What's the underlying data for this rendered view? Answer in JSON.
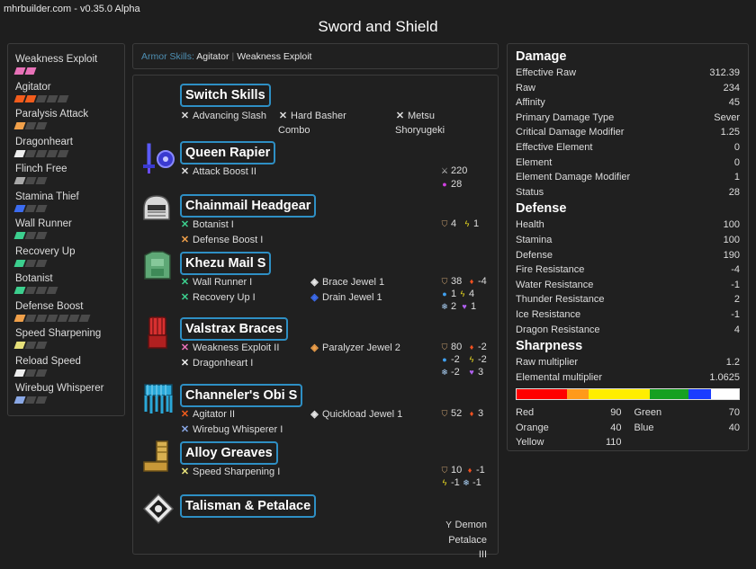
{
  "app": {
    "version": "mhrbuilder.com - v0.35.0 Alpha",
    "title": "Sword and Shield"
  },
  "skills": [
    {
      "name": "Weakness Exploit",
      "level": 2,
      "max": 2,
      "color": "#e872b8"
    },
    {
      "name": "Agitator",
      "level": 2,
      "max": 5,
      "color": "#f25c1c"
    },
    {
      "name": "Paralysis Attack",
      "level": 1,
      "max": 3,
      "color": "#f0a04a"
    },
    {
      "name": "Dragonheart",
      "level": 1,
      "max": 5,
      "color": "#eeeeee"
    },
    {
      "name": "Flinch Free",
      "level": 1,
      "max": 3,
      "color": "#a8a8a8"
    },
    {
      "name": "Stamina Thief",
      "level": 1,
      "max": 3,
      "color": "#3c6cf0"
    },
    {
      "name": "Wall Runner",
      "level": 1,
      "max": 3,
      "color": "#3ccf8e"
    },
    {
      "name": "Recovery Up",
      "level": 1,
      "max": 3,
      "color": "#3ccf8e"
    },
    {
      "name": "Botanist",
      "level": 1,
      "max": 4,
      "color": "#3ccf8e"
    },
    {
      "name": "Defense Boost",
      "level": 1,
      "max": 7,
      "color": "#f0a04a"
    },
    {
      "name": "Speed Sharpening",
      "level": 1,
      "max": 3,
      "color": "#e6e07a"
    },
    {
      "name": "Reload Speed",
      "level": 1,
      "max": 3,
      "color": "#eeeeee"
    },
    {
      "name": "Wirebug Whisperer",
      "level": 1,
      "max": 3,
      "color": "#8aa8e6"
    }
  ],
  "armor_bar": {
    "label": "Armor Skills:",
    "items": [
      "Agitator",
      "Weakness Exploit"
    ]
  },
  "switch_skills": {
    "title": "Switch Skills",
    "items": [
      "Advancing Slash",
      "Hard Basher Combo",
      "Metsu Shoryugeki"
    ]
  },
  "equipment": {
    "weapon": {
      "title": "Queen Rapier",
      "icon": "sword-shield-icon",
      "skills": [
        {
          "name": "Attack Boost II",
          "color": "#ddd"
        }
      ],
      "stats": [
        {
          "icon": "attack-icon",
          "value": "220"
        },
        {
          "icon": "paralysis-icon",
          "value": "28"
        }
      ]
    },
    "head": {
      "title": "Chainmail Headgear",
      "icon": "helmet-icon",
      "skills": [
        {
          "name": "Botanist I",
          "color": "#3ccf8e"
        },
        {
          "name": "Defense Boost I",
          "color": "#f0a04a"
        }
      ],
      "stats": [
        {
          "icon": "defense-icon",
          "value": "4"
        },
        {
          "icon": "thunder-icon",
          "value": "1"
        }
      ]
    },
    "chest": {
      "title": "Khezu Mail S",
      "icon": "chest-icon",
      "skills": [
        {
          "name": "Wall Runner I",
          "color": "#3ccf8e"
        },
        {
          "name": "Recovery Up I",
          "color": "#3ccf8e"
        }
      ],
      "jewels": [
        "Brace Jewel 1",
        "Drain Jewel 1"
      ],
      "stats": [
        {
          "icon": "defense-icon",
          "value": "38"
        },
        {
          "icon": "fire-icon",
          "value": "-4"
        },
        {
          "icon": "water-icon",
          "value": "1"
        },
        {
          "icon": "thunder-icon",
          "value": "4"
        },
        {
          "icon": "ice-icon",
          "value": "2"
        },
        {
          "icon": "dragon-icon",
          "value": "1"
        }
      ]
    },
    "arms": {
      "title": "Valstrax Braces",
      "icon": "gauntlet-icon",
      "skills": [
        {
          "name": "Weakness Exploit II",
          "color": "#e872b8"
        },
        {
          "name": "Dragonheart I",
          "color": "#eeeeee"
        }
      ],
      "jewels": [
        "Paralyzer Jewel 2"
      ],
      "stats": [
        {
          "icon": "defense-icon",
          "value": "80"
        },
        {
          "icon": "fire-icon",
          "value": "-2"
        },
        {
          "icon": "water-icon",
          "value": "-2"
        },
        {
          "icon": "thunder-icon",
          "value": "-2"
        },
        {
          "icon": "ice-icon",
          "value": "-2"
        },
        {
          "icon": "dragon-icon",
          "value": "3"
        }
      ]
    },
    "waist": {
      "title": "Channeler's Obi S",
      "icon": "waist-icon",
      "skills": [
        {
          "name": "Agitator II",
          "color": "#f25c1c"
        },
        {
          "name": "Wirebug Whisperer I",
          "color": "#8aa8e6"
        }
      ],
      "jewels": [
        "Quickload Jewel 1"
      ],
      "stats": [
        {
          "icon": "defense-icon",
          "value": "52"
        },
        {
          "icon": "fire-icon",
          "value": "3"
        }
      ]
    },
    "legs": {
      "title": "Alloy Greaves",
      "icon": "greaves-icon",
      "skills": [
        {
          "name": "Speed Sharpening I",
          "color": "#e6e07a"
        }
      ],
      "stats": [
        {
          "icon": "defense-icon",
          "value": "10"
        },
        {
          "icon": "fire-icon",
          "value": "-1"
        },
        {
          "icon": "thunder-icon",
          "value": "-1"
        },
        {
          "icon": "ice-icon",
          "value": "-1"
        }
      ]
    },
    "talisman": {
      "title": "Talisman & Petalace",
      "icon": "talisman-icon",
      "petalace": "Demon Petalace III"
    }
  },
  "stats": {
    "damage": {
      "title": "Damage",
      "rows": [
        [
          "Effective Raw",
          "312.39"
        ],
        [
          "Raw",
          "234"
        ],
        [
          "Affinity",
          "45"
        ],
        [
          "Primary Damage Type",
          "Sever"
        ],
        [
          "Critical Damage Modifier",
          "1.25"
        ],
        [
          "Effective Element",
          "0"
        ],
        [
          "Element",
          "0"
        ],
        [
          "Element Damage Modifier",
          "1"
        ],
        [
          "Status",
          "28"
        ]
      ]
    },
    "defense": {
      "title": "Defense",
      "rows": [
        [
          "Health",
          "100"
        ],
        [
          "Stamina",
          "100"
        ],
        [
          "Defense",
          "190"
        ],
        [
          "Fire Resistance",
          "-4"
        ],
        [
          "Water Resistance",
          "-1"
        ],
        [
          "Thunder Resistance",
          "2"
        ],
        [
          "Ice Resistance",
          "-1"
        ],
        [
          "Dragon Resistance",
          "4"
        ]
      ]
    },
    "sharpness": {
      "title": "Sharpness",
      "rows": [
        [
          "Raw multiplier",
          "1.2"
        ],
        [
          "Elemental multiplier",
          "1.0625"
        ]
      ],
      "segments": [
        {
          "name": "Red",
          "value": 90,
          "color": "#ff0000"
        },
        {
          "name": "Orange",
          "value": 40,
          "color": "#ff9a1a"
        },
        {
          "name": "Yellow",
          "value": 110,
          "color": "#ffee00"
        },
        {
          "name": "Green",
          "value": 70,
          "color": "#16a020"
        },
        {
          "name": "Blue",
          "value": 40,
          "color": "#1a3cff"
        },
        {
          "name": "White",
          "value": 0,
          "color": "#ffffff"
        }
      ],
      "max": 400,
      "legend_left": [
        [
          "Red",
          "90"
        ],
        [
          "Orange",
          "40"
        ],
        [
          "Yellow",
          "110"
        ]
      ],
      "legend_right": [
        [
          "Green",
          "70"
        ],
        [
          "Blue",
          "40"
        ]
      ]
    }
  }
}
